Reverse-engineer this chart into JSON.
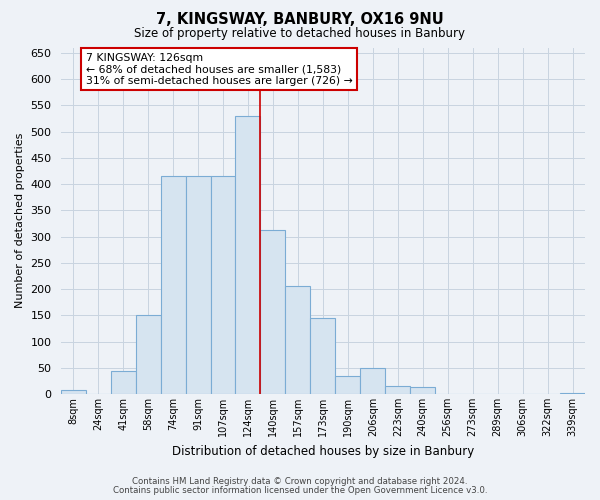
{
  "title": "7, KINGSWAY, BANBURY, OX16 9NU",
  "subtitle": "Size of property relative to detached houses in Banbury",
  "xlabel": "Distribution of detached houses by size in Banbury",
  "ylabel": "Number of detached properties",
  "bar_color": "#d6e4f0",
  "bar_edge_color": "#7bacd4",
  "marker_line_color": "#cc0000",
  "categories": [
    "8sqm",
    "24sqm",
    "41sqm",
    "58sqm",
    "74sqm",
    "91sqm",
    "107sqm",
    "124sqm",
    "140sqm",
    "157sqm",
    "173sqm",
    "190sqm",
    "206sqm",
    "223sqm",
    "240sqm",
    "256sqm",
    "273sqm",
    "289sqm",
    "306sqm",
    "322sqm",
    "339sqm"
  ],
  "values": [
    8,
    0,
    44,
    150,
    415,
    415,
    415,
    530,
    312,
    205,
    144,
    35,
    49,
    15,
    14,
    0,
    0,
    0,
    0,
    0,
    2
  ],
  "ylim": [
    0,
    660
  ],
  "yticks": [
    0,
    50,
    100,
    150,
    200,
    250,
    300,
    350,
    400,
    450,
    500,
    550,
    600,
    650
  ],
  "annotation_title": "7 KINGSWAY: 126sqm",
  "annotation_line1": "← 68% of detached houses are smaller (1,583)",
  "annotation_line2": "31% of semi-detached houses are larger (726) →",
  "annotation_box_color": "white",
  "annotation_box_edge_color": "#cc0000",
  "footer1": "Contains HM Land Registry data © Crown copyright and database right 2024.",
  "footer2": "Contains public sector information licensed under the Open Government Licence v3.0.",
  "background_color": "#eef2f7",
  "grid_color": "#c8d4e0",
  "marker_bar_idx": 7
}
